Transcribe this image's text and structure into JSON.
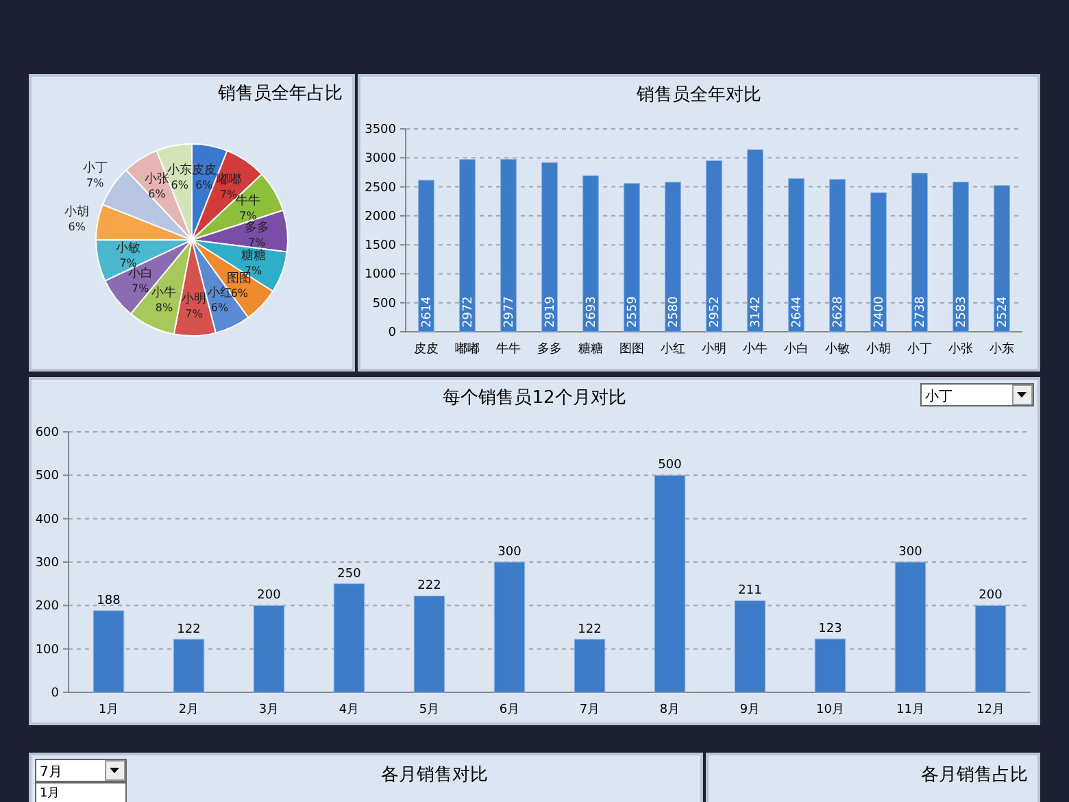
{
  "chart_data": [
    {
      "type": "pie",
      "title": "销售员全年占比",
      "categories": [
        "皮皮",
        "嘟嘟",
        "牛牛",
        "多多",
        "糖糖",
        "图图",
        "小红",
        "小明",
        "小牛",
        "小白",
        "小敏",
        "小胡",
        "小丁",
        "小张",
        "小东"
      ],
      "values": [
        6,
        7,
        7,
        7,
        7,
        6,
        6,
        7,
        8,
        7,
        7,
        6,
        7,
        6,
        6
      ],
      "colors": [
        "#3b78d0",
        "#d33b3b",
        "#8dbf3c",
        "#7a4ea6",
        "#2eaec8",
        "#ef8a2d",
        "#5b8ad5",
        "#d6524e",
        "#a7c95b",
        "#8b6bb2",
        "#4cb8d0",
        "#f8a448",
        "#b8c6e4",
        "#e7b4b4",
        "#d5e4b6"
      ],
      "value_labels": [
        "6%",
        "7%",
        "7%",
        "7%",
        "7%",
        "6%",
        "6%",
        "7%",
        "8%",
        "7%",
        "7%",
        "6%",
        "7%",
        "6%",
        "6%"
      ]
    },
    {
      "type": "bar",
      "title": "销售员全年对比",
      "categories": [
        "皮皮",
        "嘟嘟",
        "牛牛",
        "多多",
        "糖糖",
        "图图",
        "小红",
        "小明",
        "小牛",
        "小白",
        "小敏",
        "小胡",
        "小丁",
        "小张",
        "小东"
      ],
      "values": [
        2614,
        2972,
        2977,
        2919,
        2693,
        2559,
        2580,
        2952,
        3142,
        2644,
        2628,
        2400,
        2738,
        2583,
        2524
      ],
      "color": "#3d7cc9",
      "ylim": [
        0,
        3500
      ],
      "yticks": [
        0,
        500,
        1000,
        1500,
        2000,
        2500,
        3000,
        3500
      ],
      "grid": "y",
      "data_labels": true
    },
    {
      "type": "bar",
      "title": "每个销售员12个月对比",
      "categories": [
        "1月",
        "2月",
        "3月",
        "4月",
        "5月",
        "6月",
        "7月",
        "8月",
        "9月",
        "10月",
        "11月",
        "12月"
      ],
      "values": [
        188,
        122,
        200,
        250,
        222,
        300,
        122,
        500,
        211,
        123,
        300,
        200
      ],
      "color": "#3d7cc9",
      "ylim": [
        0,
        600
      ],
      "yticks": [
        0,
        100,
        200,
        300,
        400,
        500,
        600
      ],
      "grid": "y",
      "data_labels": true,
      "annotations": [
        "小丁"
      ]
    },
    {
      "type": "other",
      "title": "各月销售对比",
      "annotations": [
        "7月",
        "1月"
      ]
    },
    {
      "type": "other",
      "title": "各月销售占比"
    }
  ]
}
